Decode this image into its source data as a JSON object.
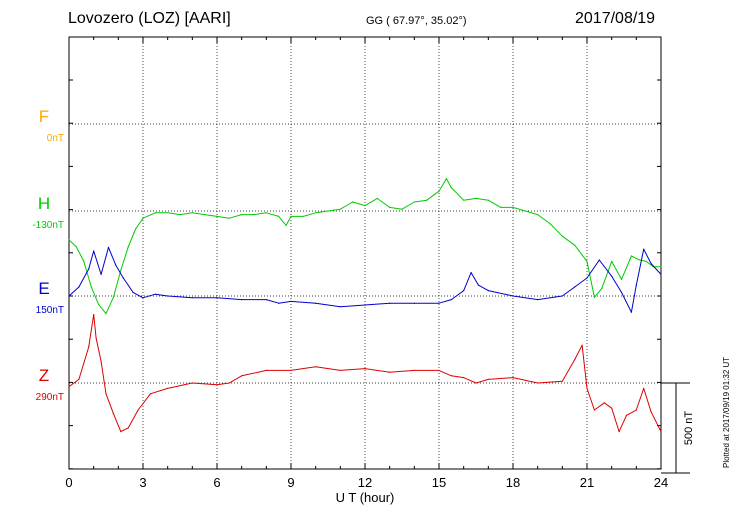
{
  "header": {
    "station": "Lovozero (LOZ)  [AARI]",
    "coords": "GG ( 67.97°,  35.02°)",
    "date": "2017/08/19"
  },
  "credit": "Plotted at 2017/09/19 01:32 UT",
  "colors": {
    "F": "#ffa500",
    "H": "#00cc00",
    "E": "#0000cc",
    "Z": "#dd0000"
  },
  "chart_data": {
    "type": "line",
    "xlabel": "U T (hour)",
    "xlim": [
      0,
      24
    ],
    "xticks": [
      "0",
      "3",
      "6",
      "9",
      "12",
      "15",
      "18",
      "21",
      "24"
    ],
    "scale_label": "500 nT",
    "scale_nT": 500,
    "grid": true,
    "series": [
      {
        "name": "F",
        "baseline": "0nT",
        "x": [],
        "y": []
      },
      {
        "name": "H",
        "baseline": "-130nT",
        "x": [
          0,
          0.3,
          0.6,
          0.9,
          1.2,
          1.5,
          1.8,
          2.1,
          2.4,
          2.7,
          3.0,
          3.5,
          4.0,
          4.5,
          5.0,
          5.5,
          6.0,
          6.5,
          7.0,
          7.5,
          8.0,
          8.5,
          8.8,
          9.0,
          9.5,
          10.0,
          10.5,
          11.0,
          11.5,
          12.0,
          12.5,
          13.0,
          13.5,
          14.0,
          14.5,
          15.0,
          15.3,
          15.5,
          16.0,
          16.5,
          17.0,
          17.5,
          18.0,
          18.5,
          19.0,
          19.5,
          20.0,
          20.5,
          21.0,
          21.3,
          21.6,
          22.0,
          22.4,
          22.8,
          23.1,
          23.4,
          23.7,
          24.0
        ],
        "y": [
          -160,
          -200,
          -280,
          -420,
          -520,
          -570,
          -480,
          -330,
          -200,
          -100,
          -40,
          -10,
          -10,
          -20,
          -10,
          -20,
          -30,
          -40,
          -20,
          -20,
          -10,
          -30,
          -80,
          -30,
          -30,
          -10,
          0,
          10,
          50,
          30,
          70,
          20,
          10,
          50,
          60,
          110,
          180,
          130,
          60,
          70,
          60,
          20,
          20,
          0,
          -20,
          -70,
          -140,
          -190,
          -280,
          -480,
          -430,
          -280,
          -380,
          -250,
          -270,
          -280,
          -310,
          -310
        ]
      },
      {
        "name": "E",
        "baseline": "150nT",
        "x": [
          0,
          0.4,
          0.8,
          1.0,
          1.3,
          1.6,
          1.9,
          2.2,
          2.6,
          3.0,
          3.5,
          4.0,
          5.0,
          6.0,
          7.0,
          8.0,
          8.5,
          9.0,
          10.0,
          11.0,
          12.0,
          13.0,
          14.0,
          15.0,
          15.5,
          16.0,
          16.3,
          16.6,
          17.0,
          18.0,
          19.0,
          20.0,
          20.5,
          21.0,
          21.5,
          22.0,
          22.4,
          22.8,
          23.0,
          23.3,
          23.6,
          24.0
        ],
        "y": [
          0,
          50,
          150,
          250,
          120,
          270,
          170,
          100,
          20,
          -10,
          10,
          0,
          -10,
          -10,
          -20,
          -20,
          -40,
          -30,
          -40,
          -60,
          -50,
          -40,
          -40,
          -40,
          -20,
          30,
          130,
          60,
          30,
          0,
          -20,
          0,
          50,
          100,
          200,
          110,
          20,
          -90,
          60,
          260,
          180,
          120
        ]
      },
      {
        "name": "Z",
        "baseline": "290nT",
        "x": [
          0,
          0.4,
          0.8,
          1.0,
          1.1,
          1.3,
          1.5,
          1.8,
          2.1,
          2.4,
          2.8,
          3.3,
          4.0,
          5.0,
          6.0,
          6.5,
          7.0,
          8.0,
          9.0,
          10.0,
          11.0,
          12.0,
          13.0,
          14.0,
          15.0,
          15.5,
          16.0,
          16.5,
          17.0,
          18.0,
          19.0,
          20.0,
          20.5,
          20.8,
          21.0,
          21.3,
          21.7,
          22.0,
          22.3,
          22.6,
          23.0,
          23.3,
          23.6,
          24.0
        ],
        "y": [
          -20,
          20,
          200,
          380,
          250,
          120,
          -60,
          -170,
          -270,
          -250,
          -150,
          -60,
          -30,
          0,
          -10,
          0,
          40,
          70,
          70,
          90,
          70,
          80,
          60,
          70,
          70,
          40,
          30,
          0,
          20,
          30,
          0,
          10,
          130,
          210,
          -30,
          -150,
          -110,
          -140,
          -270,
          -180,
          -150,
          -30,
          -160,
          -270
        ]
      }
    ]
  }
}
